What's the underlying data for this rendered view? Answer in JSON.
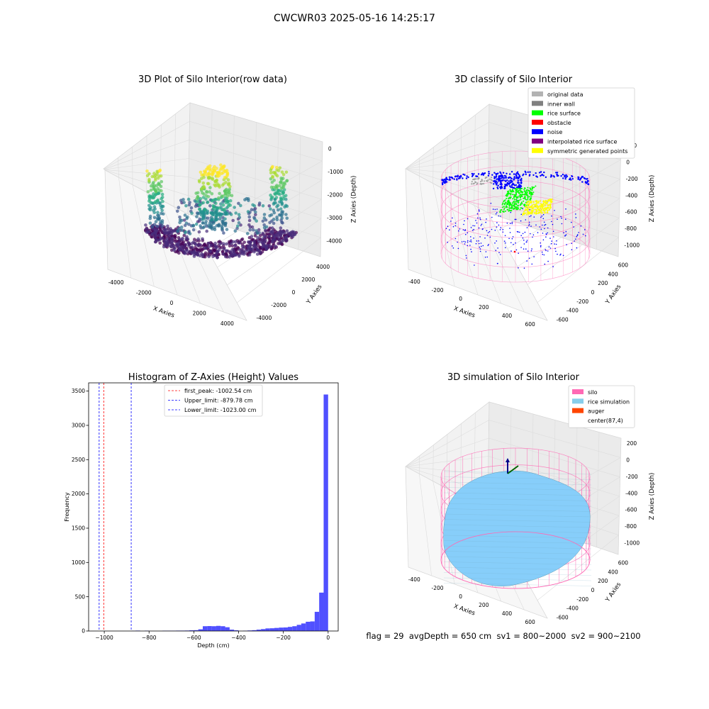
{
  "suptitle": "CWCWR03 2025-05-16 14:25:17",
  "footer": "flag = 29  avgDepth = 650 cm  sv1 = 800~2000  sv2 = 900~2100",
  "colors": {
    "hist_bar": "#4d4dff",
    "first_peak_line": "#ff0000",
    "limit_line": "#0000ff",
    "silo_wire": "#ff69b4",
    "rice": "#87cefa"
  },
  "chart_data": [
    {
      "type": "scatter",
      "title": "3D Plot of Silo Interior(row data)",
      "xlabel": "X Axies",
      "ylabel": "Y Axies",
      "zlabel": "Z Axies (Depth)",
      "x_ticks": [
        "-4000",
        "-2000",
        "0",
        "2000",
        "4000"
      ],
      "y_ticks": [
        "-4000",
        "-2000",
        "0",
        "2000",
        "4000"
      ],
      "z_ticks": [
        "0",
        "-1000",
        "-2000",
        "-3000",
        "-4000"
      ],
      "xlim": [
        -4500,
        4500
      ],
      "ylim": [
        -4500,
        4500
      ],
      "zlim": [
        -4500,
        0
      ],
      "colormap": "viridis"
    },
    {
      "type": "scatter",
      "title": "3D classify of Silo Interior",
      "xlabel": "X Axies",
      "ylabel": "Y Axies",
      "zlabel": "Z Axies (Depth)",
      "x_ticks": [
        "-400",
        "-200",
        "0",
        "200",
        "400",
        "600"
      ],
      "y_ticks": [
        "-600",
        "-400",
        "-200",
        "0",
        "200",
        "400",
        "600"
      ],
      "z_ticks": [
        "200",
        "0",
        "-200",
        "-400",
        "-600",
        "-800",
        "-1000"
      ],
      "legend_position": "top-right",
      "legend": [
        {
          "label": "original data",
          "color": "#b3b3b3"
        },
        {
          "label": "inner wall",
          "color": "#808080"
        },
        {
          "label": "rice surface",
          "color": "#00ff00"
        },
        {
          "label": "obstacle",
          "color": "#ff0000"
        },
        {
          "label": "noise",
          "color": "#0000ff"
        },
        {
          "label": "interpolated rice surface",
          "color": "#800080"
        },
        {
          "label": "symmetric generated points",
          "color": "#ffff00"
        }
      ]
    },
    {
      "type": "bar",
      "title": "Histogram of Z-Axies (Height) Values",
      "xlabel": "Depth (cm)",
      "ylabel": "Frequency",
      "xlim": [
        -1070,
        45
      ],
      "ylim": [
        0,
        3620
      ],
      "x_ticks": [
        -1000,
        -800,
        -600,
        -400,
        -200,
        0
      ],
      "y_ticks": [
        0,
        500,
        1000,
        1500,
        2000,
        2500,
        3000,
        3500
      ],
      "bin_width": 20,
      "bins": [
        [
          -880,
          3
        ],
        [
          -860,
          6
        ],
        [
          -820,
          5
        ],
        [
          -740,
          5
        ],
        [
          -720,
          5
        ],
        [
          -700,
          5
        ],
        [
          -680,
          6
        ],
        [
          -660,
          6
        ],
        [
          -640,
          7
        ],
        [
          -620,
          10
        ],
        [
          -600,
          12
        ],
        [
          -580,
          25
        ],
        [
          -560,
          70
        ],
        [
          -540,
          72
        ],
        [
          -520,
          70
        ],
        [
          -500,
          75
        ],
        [
          -480,
          70
        ],
        [
          -460,
          55
        ],
        [
          -440,
          20
        ],
        [
          -420,
          10
        ],
        [
          -380,
          5
        ],
        [
          -360,
          8
        ],
        [
          -340,
          12
        ],
        [
          -320,
          20
        ],
        [
          -300,
          28
        ],
        [
          -280,
          38
        ],
        [
          -260,
          40
        ],
        [
          -240,
          45
        ],
        [
          -220,
          50
        ],
        [
          -200,
          52
        ],
        [
          -180,
          60
        ],
        [
          -160,
          70
        ],
        [
          -140,
          90
        ],
        [
          -120,
          110
        ],
        [
          -100,
          135
        ],
        [
          -80,
          140
        ],
        [
          -60,
          280
        ],
        [
          -40,
          560
        ],
        [
          -20,
          3450
        ]
      ],
      "vlines": [
        {
          "label": "first_peak: -1002.54 cm",
          "x": -1002.54,
          "color": "#ff0000"
        },
        {
          "label": "Upper_limit: -879.78 cm",
          "x": -879.78,
          "color": "#0000ff"
        },
        {
          "label": "Lower_limit: -1023.00 cm",
          "x": -1023.0,
          "color": "#0000ff"
        }
      ],
      "legend_position": "top-center"
    },
    {
      "type": "surface",
      "title": "3D simulation of Silo Interior",
      "xlabel": "X Axies",
      "ylabel": "Y Axies",
      "zlabel": "Z Axies (Depth)",
      "x_ticks": [
        "-400",
        "-200",
        "0",
        "200",
        "400",
        "600"
      ],
      "y_ticks": [
        "-600",
        "-400",
        "-200",
        "0",
        "200",
        "400",
        "600"
      ],
      "z_ticks": [
        "200",
        "0",
        "-200",
        "-400",
        "-600",
        "-800",
        "-1000"
      ],
      "legend_position": "top-right",
      "legend": [
        {
          "label": "silo",
          "color": "#ff69b4"
        },
        {
          "label": "rice simulation",
          "color": "#87ceeb"
        },
        {
          "label": "auger",
          "color": "#ff4500"
        },
        {
          "label": "center(87,4)",
          "color": "#ffffff"
        }
      ]
    }
  ]
}
